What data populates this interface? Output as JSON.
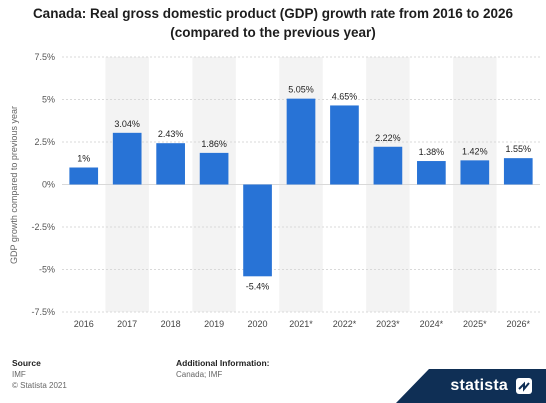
{
  "title_line1": "Canada: Real gross domestic product (GDP) growth rate from 2016 to 2026",
  "title_line2": "(compared to the previous year)",
  "footer": {
    "source_head": "Source",
    "source_value": "IMF",
    "copyright": "© Statista 2021",
    "info_head": "Additional Information:",
    "info_value": "Canada; IMF"
  },
  "brand": "statista",
  "colors": {
    "bar": "#2873d6",
    "grid": "#d9d9d9",
    "band": "#f3f3f3"
  },
  "chart_data": {
    "type": "bar",
    "title": "Canada: Real gross domestic product (GDP) growth rate from 2016 to 2026 (compared to the previous year)",
    "ylabel": "GDP growth compared to previous year",
    "xlabel": "",
    "ylim": [
      -7.5,
      7.5
    ],
    "yticks": [
      7.5,
      5,
      2.5,
      0,
      -2.5,
      -5,
      -7.5
    ],
    "ytick_labels": [
      "7.5%",
      "5%",
      "2.5%",
      "0%",
      "-2.5%",
      "-5%",
      "-7.5%"
    ],
    "categories": [
      "2016",
      "2017",
      "2018",
      "2019",
      "2020",
      "2021*",
      "2022*",
      "2023*",
      "2024*",
      "2025*",
      "2026*"
    ],
    "values": [
      1,
      3.04,
      2.43,
      1.86,
      -5.4,
      5.05,
      4.65,
      2.22,
      1.38,
      1.42,
      1.55
    ],
    "value_labels": [
      "1%",
      "3.04%",
      "2.43%",
      "1.86%",
      "-5.4%",
      "5.05%",
      "4.65%",
      "2.22%",
      "1.38%",
      "1.42%",
      "1.55%"
    ],
    "grid": true,
    "legend": "none"
  }
}
